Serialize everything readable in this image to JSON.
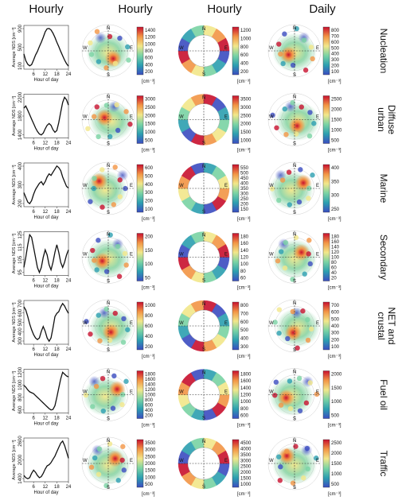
{
  "column_headers": [
    "Hourly",
    "Hourly",
    "Hourly",
    "Daily"
  ],
  "common": {
    "ylabel": "Average NDS [cm⁻³]",
    "xlabel": "Hour of day",
    "xticks": [
      "6",
      "12",
      "18",
      "24"
    ],
    "unit": "[cm⁻³]",
    "compass": [
      "N",
      "E",
      "S",
      "W"
    ]
  },
  "chart_data": [
    {
      "type": "line",
      "factor": "Nucleation",
      "factor_lines": [
        "Nucleation"
      ],
      "line": {
        "x": [
          1,
          2,
          3,
          4,
          5,
          6,
          7,
          8,
          9,
          10,
          11,
          12,
          13,
          14,
          15,
          16,
          17,
          18,
          19,
          20,
          21,
          22,
          23,
          24
        ],
        "y": [
          520,
          300,
          180,
          130,
          170,
          320,
          480,
          600,
          760,
          900,
          1060,
          1240,
          1340,
          1350,
          1300,
          1200,
          1060,
          900,
          760,
          600,
          460,
          320,
          200,
          120
        ],
        "yticks": [
          "100",
          "500",
          "900"
        ]
      },
      "hourly_polar_cbar": [
        "200",
        "400",
        "600",
        "800",
        "1000",
        "1200",
        "1400"
      ],
      "hourly_ring_cbar": [
        "200",
        "400",
        "600",
        "800",
        "1000",
        "1200"
      ],
      "daily_polar_cbar": [
        "100",
        "200",
        "300",
        "400",
        "500",
        "600",
        "700",
        "800"
      ]
    },
    {
      "type": "line",
      "factor": "Diffuse urban",
      "factor_lines": [
        "Diffuse",
        "urban"
      ],
      "line": {
        "x": [
          1,
          2,
          3,
          4,
          5,
          6,
          7,
          8,
          9,
          10,
          11,
          12,
          13,
          14,
          15,
          16,
          17,
          18,
          19,
          20,
          21,
          22,
          23,
          24
        ],
        "y": [
          1950,
          2000,
          1900,
          1800,
          1700,
          1600,
          1500,
          1420,
          1360,
          1340,
          1380,
          1480,
          1560,
          1600,
          1560,
          1460,
          1400,
          1440,
          1620,
          1860,
          2080,
          2200,
          2140,
          2020
        ],
        "yticks": [
          "1400",
          "1800",
          "2200"
        ]
      },
      "hourly_polar_cbar": [
        "500",
        "1000",
        "1500",
        "2000",
        "2500",
        "3000"
      ],
      "hourly_ring_cbar": [
        "1000",
        "1500",
        "2000",
        "2500",
        "3000",
        "3500"
      ],
      "daily_polar_cbar": [
        "500",
        "1000",
        "1500",
        "2000",
        "2500"
      ]
    },
    {
      "type": "line",
      "factor": "Marine",
      "factor_lines": [
        "Marine"
      ],
      "line": {
        "x": [
          1,
          2,
          3,
          4,
          5,
          6,
          7,
          8,
          9,
          10,
          11,
          12,
          13,
          14,
          15,
          16,
          17,
          18,
          19,
          20,
          21,
          22,
          23,
          24
        ],
        "y": [
          260,
          230,
          200,
          190,
          210,
          250,
          280,
          300,
          320,
          330,
          310,
          330,
          360,
          380,
          370,
          390,
          410,
          430,
          420,
          400,
          360,
          330,
          300,
          290
        ],
        "yticks": [
          "200",
          "300",
          "400"
        ]
      },
      "hourly_polar_cbar": [
        "100",
        "200",
        "300",
        "400",
        "500",
        "600"
      ],
      "hourly_ring_cbar": [
        "150",
        "200",
        "250",
        "300",
        "350",
        "400",
        "450",
        "500",
        "550"
      ],
      "daily_polar_cbar": [
        "250",
        "300",
        "350",
        "400"
      ]
    },
    {
      "type": "line",
      "factor": "Secondary",
      "factor_lines": [
        "Secondary"
      ],
      "line": {
        "x": [
          1,
          2,
          3,
          4,
          5,
          6,
          7,
          8,
          9,
          10,
          11,
          12,
          13,
          14,
          15,
          16,
          17,
          18,
          19,
          20,
          21,
          22,
          23,
          24
        ],
        "y": [
          100,
          108,
          118,
          126,
          124,
          116,
          108,
          100,
          96,
          100,
          108,
          114,
          110,
          102,
          98,
          104,
          112,
          118,
          112,
          104,
          100,
          104,
          110,
          114
        ],
        "yticks": [
          "95",
          "105",
          "115",
          "125"
        ]
      },
      "hourly_polar_cbar": [
        "50",
        "100",
        "150",
        "200"
      ],
      "hourly_ring_cbar": [
        "60",
        "80",
        "100",
        "120",
        "140",
        "160",
        "180"
      ],
      "daily_polar_cbar": [
        "20",
        "40",
        "60",
        "80",
        "100",
        "120",
        "140",
        "160",
        "180"
      ]
    },
    {
      "type": "line",
      "factor": "NET and crustal",
      "factor_lines": [
        "NET and",
        "crustal"
      ],
      "line": {
        "x": [
          1,
          2,
          3,
          4,
          5,
          6,
          7,
          8,
          9,
          10,
          11,
          12,
          13,
          14,
          15,
          16,
          17,
          18,
          19,
          20,
          21,
          22,
          23,
          24
        ],
        "y": [
          680,
          640,
          560,
          470,
          400,
          340,
          300,
          280,
          300,
          380,
          440,
          380,
          300,
          260,
          300,
          420,
          560,
          600,
          620,
          680,
          720,
          690,
          640,
          600
        ],
        "yticks": [
          "300",
          "400",
          "500",
          "600",
          "700"
        ]
      },
      "hourly_polar_cbar": [
        "200",
        "400",
        "600",
        "800",
        "1000"
      ],
      "hourly_ring_cbar": [
        "300",
        "400",
        "500",
        "600",
        "700",
        "800"
      ],
      "daily_polar_cbar": [
        "100",
        "200",
        "300",
        "400",
        "500",
        "600",
        "700"
      ]
    },
    {
      "type": "line",
      "factor": "Fuel oil",
      "factor_lines": [
        "Fuel oil"
      ],
      "line": {
        "x": [
          1,
          2,
          3,
          4,
          5,
          6,
          7,
          8,
          9,
          10,
          11,
          12,
          13,
          14,
          15,
          16,
          17,
          18,
          19,
          20,
          21,
          22,
          23,
          24
        ],
        "y": [
          1060,
          1020,
          960,
          920,
          900,
          880,
          840,
          800,
          760,
          720,
          680,
          640,
          600,
          560,
          530,
          540,
          620,
          800,
          1000,
          1200,
          1340,
          1300,
          1260,
          1240
        ],
        "yticks": [
          "600",
          "800",
          "1000",
          "1200"
        ]
      },
      "hourly_polar_cbar": [
        "200",
        "400",
        "600",
        "800",
        "1000",
        "1200",
        "1400",
        "1600",
        "1800"
      ],
      "hourly_ring_cbar": [
        "600",
        "800",
        "1000",
        "1200",
        "1400",
        "1600",
        "1800"
      ],
      "daily_polar_cbar": [
        "500",
        "1000",
        "1500",
        "2000"
      ]
    },
    {
      "type": "line",
      "factor": "Traffic",
      "factor_lines": [
        "Traffic"
      ],
      "line": {
        "x": [
          1,
          2,
          3,
          4,
          5,
          6,
          7,
          8,
          9,
          10,
          11,
          12,
          13,
          14,
          15,
          16,
          17,
          18,
          19,
          20,
          21,
          22,
          23,
          24
        ],
        "y": [
          1600,
          1500,
          1450,
          1500,
          1700,
          1850,
          1750,
          1600,
          1500,
          1550,
          1700,
          1900,
          2050,
          2100,
          2200,
          2350,
          2500,
          2700,
          2900,
          3100,
          3200,
          3000,
          2700,
          2400
        ],
        "yticks": [
          "1400",
          "2000",
          "2600"
        ]
      },
      "hourly_polar_cbar": [
        "500",
        "1000",
        "1500",
        "2000",
        "2500",
        "3000",
        "3500"
      ],
      "hourly_ring_cbar": [
        "1000",
        "1500",
        "2000",
        "2500",
        "3000",
        "3500",
        "4000",
        "4500"
      ],
      "daily_polar_cbar": [
        "500",
        "1000",
        "1500",
        "2000",
        "2500"
      ]
    }
  ]
}
